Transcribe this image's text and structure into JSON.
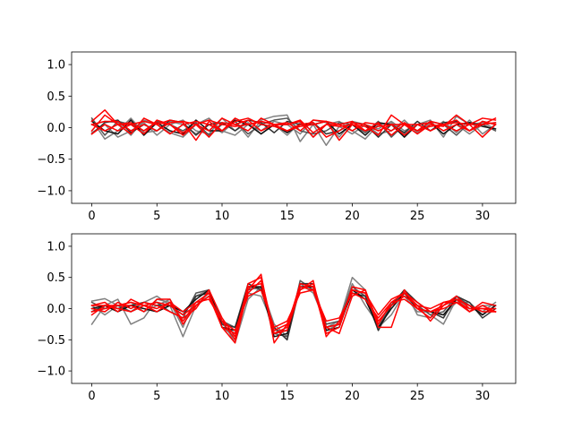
{
  "chart_data": [
    {
      "type": "line",
      "title": "",
      "xlabel": "",
      "ylabel": "",
      "xlim": [
        -1.55,
        32.55
      ],
      "ylim": [
        -1.2,
        1.2
      ],
      "xticks": [
        0,
        5,
        10,
        15,
        20,
        25,
        30
      ],
      "yticks": [
        -1.0,
        -0.5,
        0.0,
        0.5,
        1.0
      ],
      "xtick_labels": [
        "0",
        "5",
        "10",
        "15",
        "20",
        "25",
        "30"
      ],
      "ytick_labels": [
        "−1.0",
        "−0.5",
        "0.0",
        "0.5",
        "1.0"
      ],
      "grid": false,
      "x": [
        0,
        1,
        2,
        3,
        4,
        5,
        6,
        7,
        8,
        9,
        10,
        11,
        12,
        13,
        14,
        15,
        16,
        17,
        18,
        19,
        20,
        21,
        22,
        23,
        24,
        25,
        26,
        27,
        28,
        29,
        30,
        31
      ],
      "series": [
        {
          "color": "#808080",
          "values": [
            0.12,
            -0.18,
            -0.05,
            0.15,
            -0.08,
            -0.05,
            0.1,
            0.05,
            -0.1,
            0.05,
            -0.08,
            0.1,
            -0.15,
            0.12,
            0.18,
            0.2,
            -0.22,
            0.05,
            -0.28,
            0.02,
            -0.1,
            0.05,
            -0.02,
            0.1,
            -0.05,
            0.05,
            0.12,
            -0.15,
            0.18,
            0.05,
            0.08,
            -0.02
          ]
        },
        {
          "color": "#808080",
          "values": [
            -0.08,
            0.05,
            -0.15,
            -0.05,
            0.08,
            -0.12,
            0.05,
            0.12,
            -0.05,
            -0.1,
            0.15,
            -0.05,
            0.08,
            -0.1,
            0.05,
            -0.12,
            0.08,
            -0.15,
            0.05,
            0.1,
            -0.05,
            -0.18,
            0.05,
            0.08,
            -0.1,
            0.05,
            -0.05,
            0.1,
            -0.08,
            0.12,
            -0.1,
            0.05
          ]
        },
        {
          "color": "#808080",
          "values": [
            0.05,
            0.1,
            0.08,
            -0.12,
            0.12,
            0.05,
            -0.08,
            -0.15,
            0.05,
            0.15,
            -0.05,
            -0.12,
            0.05,
            -0.05,
            0.1,
            0.05,
            -0.1,
            0.12,
            0.08,
            -0.15,
            0.1,
            0.05,
            -0.1,
            -0.05,
            0.12,
            -0.08,
            0.08,
            -0.05,
            0.05,
            -0.1,
            0.05,
            0.08
          ]
        },
        {
          "color": "#555555",
          "values": [
            0.15,
            -0.12,
            0.1,
            0.05,
            -0.05,
            0.1,
            0.05,
            -0.05,
            0.08,
            -0.12,
            0.05,
            0.1,
            -0.1,
            0.05,
            0.12,
            0.15,
            -0.05,
            -0.1,
            -0.05,
            0.08,
            0.05,
            -0.08,
            0.1,
            -0.15,
            0.05,
            -0.05,
            0.1,
            0.05,
            -0.12,
            0.08,
            0.05,
            -0.05
          ]
        },
        {
          "color": "#333333",
          "values": [
            -0.1,
            0.08,
            0.12,
            -0.08,
            0.05,
            -0.05,
            0.12,
            0.08,
            -0.12,
            0.05,
            0.08,
            -0.05,
            0.12,
            0.08,
            -0.08,
            0.1,
            0.05,
            0.08,
            -0.1,
            -0.05,
            0.08,
            0.05,
            -0.15,
            0.05,
            -0.08,
            0.1,
            -0.05,
            0.08,
            0.1,
            -0.05,
            0.1,
            0.05
          ]
        },
        {
          "color": "#111111",
          "values": [
            0.1,
            -0.05,
            -0.1,
            0.12,
            -0.12,
            0.08,
            -0.05,
            -0.1,
            0.12,
            -0.05,
            -0.05,
            0.12,
            0.05,
            -0.1,
            0.05,
            -0.08,
            0.05,
            0.05,
            0.1,
            -0.1,
            0.05,
            -0.12,
            0.08,
            0.05,
            -0.15,
            0.05,
            0.08,
            -0.1,
            0.05,
            0.08,
            0.02,
            -0.02
          ]
        },
        {
          "color": "#ff0000",
          "values": [
            0.1,
            0.28,
            0.05,
            -0.1,
            0.15,
            0.05,
            0.12,
            0.08,
            -0.2,
            0.1,
            -0.05,
            0.15,
            0.05,
            0.1,
            0.05,
            0.08,
            -0.05,
            0.12,
            0.1,
            -0.2,
            0.05,
            0.02,
            -0.12,
            0.2,
            0.05,
            -0.1,
            0.05,
            0.02,
            0.2,
            0.05,
            0.15,
            0.12
          ]
        },
        {
          "color": "#ff0000",
          "values": [
            -0.05,
            0.2,
            0.05,
            0.05,
            -0.1,
            0.12,
            0.05,
            -0.12,
            0.05,
            -0.05,
            0.15,
            0.05,
            0.12,
            -0.05,
            0.05,
            0.05,
            0.1,
            -0.15,
            0.05,
            0.02,
            0.05,
            -0.05,
            0.08,
            -0.12,
            0.05,
            0.05,
            -0.05,
            0.05,
            0.12,
            -0.05,
            0.05,
            0.15
          ]
        },
        {
          "color": "#ff0000",
          "values": [
            0.05,
            0.1,
            0.1,
            -0.05,
            0.05,
            -0.05,
            0.08,
            0.1,
            0.05,
            -0.15,
            0.08,
            0.05,
            -0.05,
            0.15,
            0.05,
            -0.05,
            0.05,
            0.08,
            -0.15,
            -0.05,
            0.08,
            0.05,
            -0.05,
            0.05,
            -0.12,
            0.05,
            0.08,
            -0.05,
            0.05,
            -0.05,
            0.1,
            0.05
          ]
        },
        {
          "color": "#ff0000",
          "values": [
            -0.1,
            0.05,
            -0.05,
            0.05,
            0.1,
            0.05,
            -0.1,
            0.05,
            0.1,
            0.05,
            -0.05,
            0.1,
            0.15,
            0.05,
            0.02,
            -0.05,
            0.02,
            0.05,
            0.1,
            0.05,
            -0.05,
            0.08,
            0.05,
            -0.05,
            0.08,
            -0.05,
            0.02,
            0.05,
            0.08,
            0.05,
            -0.15,
            0.05
          ]
        },
        {
          "color": "#ff0000",
          "values": [
            0.05,
            -0.05,
            0.05,
            0.08,
            -0.05,
            0.08,
            0.05,
            -0.08,
            0.05,
            0.12,
            0.05,
            0.02,
            0.05,
            0.1,
            0.05,
            0.05,
            0.12,
            -0.08,
            0.05,
            0.05,
            0.1,
            -0.05,
            0.02,
            0.05,
            0.05,
            -0.05,
            0.1,
            0.05,
            -0.05,
            0.05,
            0.05,
            0.08
          ]
        }
      ]
    },
    {
      "type": "line",
      "title": "",
      "xlabel": "",
      "ylabel": "",
      "xlim": [
        -1.55,
        32.55
      ],
      "ylim": [
        -1.2,
        1.2
      ],
      "xticks": [
        0,
        5,
        10,
        15,
        20,
        25,
        30
      ],
      "yticks": [
        -1.0,
        -0.5,
        0.0,
        0.5,
        1.0
      ],
      "xtick_labels": [
        "0",
        "5",
        "10",
        "15",
        "20",
        "25",
        "30"
      ],
      "ytick_labels": [
        "−1.0",
        "−0.5",
        "0.0",
        "0.5",
        "1.0"
      ],
      "grid": false,
      "x": [
        0,
        1,
        2,
        3,
        4,
        5,
        6,
        7,
        8,
        9,
        10,
        11,
        12,
        13,
        14,
        15,
        16,
        17,
        18,
        19,
        20,
        21,
        22,
        23,
        24,
        25,
        26,
        27,
        28,
        29,
        30,
        31
      ],
      "series": [
        {
          "color": "#808080",
          "values": [
            0.12,
            0.16,
            0.05,
            -0.05,
            0.1,
            0.2,
            0.05,
            -0.45,
            0.05,
            0.2,
            -0.2,
            -0.55,
            0.15,
            0.35,
            -0.25,
            -0.45,
            0.35,
            0.3,
            -0.3,
            -0.2,
            0.5,
            0.3,
            -0.3,
            -0.1,
            0.25,
            0.05,
            -0.1,
            -0.25,
            0.15,
            0.05,
            -0.05,
            0.1
          ]
        },
        {
          "color": "#808080",
          "values": [
            -0.25,
            0.05,
            0.15,
            -0.25,
            -0.15,
            0.15,
            0.1,
            -0.3,
            0.2,
            0.3,
            -0.3,
            -0.45,
            0.35,
            0.3,
            -0.35,
            -0.35,
            0.4,
            0.25,
            -0.25,
            -0.2,
            0.4,
            0.05,
            -0.25,
            0.05,
            0.3,
            -0.1,
            -0.15,
            0.05,
            0.2,
            -0.05,
            0.05,
            0.05
          ]
        },
        {
          "color": "#808080",
          "values": [
            0.05,
            -0.1,
            0.05,
            0.1,
            -0.05,
            0.05,
            0.15,
            -0.2,
            0.05,
            0.25,
            -0.25,
            -0.4,
            0.25,
            0.2,
            -0.3,
            -0.5,
            0.35,
            0.35,
            -0.35,
            -0.25,
            0.3,
            0.25,
            -0.35,
            0.1,
            0.2,
            -0.05,
            -0.05,
            -0.1,
            0.1,
            0.1,
            -0.1,
            0.05
          ]
        },
        {
          "color": "#555555",
          "values": [
            0.1,
            0.0,
            0.05,
            -0.05,
            0.05,
            0.1,
            -0.05,
            -0.15,
            0.25,
            0.3,
            -0.2,
            -0.3,
            0.3,
            0.35,
            -0.4,
            -0.45,
            0.45,
            0.3,
            -0.25,
            -0.2,
            0.35,
            0.2,
            -0.3,
            0.05,
            0.25,
            0.05,
            -0.1,
            -0.05,
            0.2,
            0.05,
            -0.1,
            0.05
          ]
        },
        {
          "color": "#333333",
          "values": [
            -0.05,
            0.05,
            0.0,
            0.05,
            0.1,
            0.05,
            0.05,
            -0.1,
            0.2,
            0.25,
            -0.25,
            -0.3,
            0.4,
            0.3,
            -0.3,
            -0.5,
            0.4,
            0.4,
            -0.3,
            -0.25,
            0.25,
            0.2,
            -0.35,
            0.05,
            0.3,
            0.1,
            -0.05,
            -0.15,
            0.2,
            0.1,
            -0.15,
            0.0
          ]
        },
        {
          "color": "#111111",
          "values": [
            0.0,
            0.05,
            -0.05,
            0.05,
            0.0,
            -0.05,
            0.05,
            -0.05,
            0.15,
            0.3,
            -0.3,
            -0.35,
            0.35,
            0.35,
            -0.45,
            -0.4,
            0.35,
            0.35,
            -0.35,
            -0.3,
            0.3,
            0.15,
            -0.3,
            0.0,
            0.25,
            0.0,
            -0.05,
            -0.1,
            0.15,
            0.05,
            -0.1,
            0.05
          ]
        },
        {
          "color": "#ff0000",
          "values": [
            0.05,
            0.1,
            -0.05,
            0.15,
            0.05,
            -0.05,
            0.1,
            -0.2,
            0.1,
            0.25,
            -0.3,
            -0.55,
            0.3,
            0.55,
            -0.55,
            -0.25,
            0.3,
            0.45,
            -0.45,
            -0.2,
            0.3,
            0.25,
            -0.2,
            0.05,
            0.2,
            0.05,
            -0.2,
            0.05,
            0.15,
            -0.05,
            0.05,
            -0.05
          ]
        },
        {
          "color": "#ff0000",
          "values": [
            -0.1,
            0.05,
            0.05,
            0.05,
            -0.05,
            0.15,
            0.15,
            -0.25,
            0.05,
            0.2,
            -0.2,
            -0.5,
            0.4,
            0.5,
            -0.4,
            -0.3,
            0.4,
            0.35,
            -0.4,
            -0.3,
            0.35,
            0.3,
            -0.3,
            -0.3,
            0.3,
            0.0,
            -0.15,
            0.1,
            0.1,
            -0.05,
            0.1,
            0.05
          ]
        },
        {
          "color": "#ff0000",
          "values": [
            0.0,
            -0.05,
            0.1,
            0.0,
            0.1,
            0.05,
            -0.05,
            -0.15,
            0.0,
            0.3,
            -0.15,
            -0.45,
            0.25,
            0.45,
            -0.4,
            -0.35,
            0.3,
            0.4,
            -0.3,
            -0.4,
            0.2,
            0.3,
            -0.25,
            0.1,
            0.25,
            0.1,
            -0.05,
            0.05,
            0.2,
            0.0,
            0.0,
            -0.05
          ]
        },
        {
          "color": "#ff0000",
          "values": [
            -0.05,
            0.0,
            0.05,
            0.1,
            0.05,
            0.1,
            0.05,
            -0.1,
            0.05,
            0.2,
            -0.3,
            -0.4,
            0.35,
            0.4,
            -0.35,
            -0.25,
            0.35,
            0.3,
            -0.3,
            -0.25,
            0.3,
            0.25,
            -0.1,
            0.15,
            0.25,
            0.05,
            0.0,
            0.1,
            0.15,
            0.05,
            -0.05,
            -0.05
          ]
        },
        {
          "color": "#ff0000",
          "values": [
            0.05,
            0.05,
            0.0,
            -0.05,
            0.05,
            0.0,
            0.1,
            -0.05,
            0.1,
            0.15,
            -0.2,
            -0.35,
            0.2,
            0.3,
            -0.3,
            -0.2,
            0.25,
            0.3,
            -0.2,
            -0.15,
            0.25,
            0.15,
            -0.15,
            0.1,
            0.15,
            0.0,
            -0.05,
            0.0,
            0.1,
            0.0,
            0.0,
            0.0
          ]
        }
      ]
    }
  ]
}
